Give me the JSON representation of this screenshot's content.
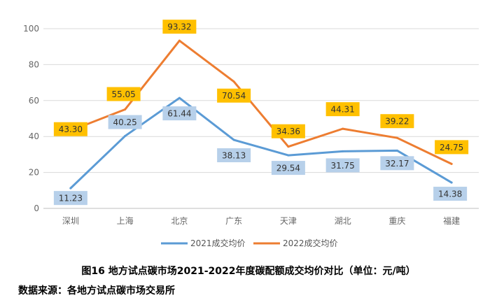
{
  "chart_data": {
    "type": "line",
    "categories": [
      "深圳",
      "上海",
      "北京",
      "广东",
      "天津",
      "湖北",
      "重庆",
      "福建"
    ],
    "series": [
      {
        "name": "2021成交均价",
        "values": [
          11.23,
          40.25,
          61.44,
          38.13,
          29.54,
          31.75,
          32.17,
          14.38
        ],
        "color": "#5b9bd5",
        "label_bg": "#b7d0ea"
      },
      {
        "name": "2022成交均价",
        "values": [
          43.3,
          55.05,
          93.32,
          70.54,
          34.36,
          44.31,
          39.22,
          24.75
        ],
        "color": "#ed7d31",
        "label_bg": "#ffc000"
      }
    ],
    "data_labels": [
      [
        "11.23",
        "40.25",
        "61.44",
        "38.13",
        "29.54",
        "31.75",
        "32.17",
        "14.38"
      ],
      [
        "43.30",
        "55.05",
        "93.32",
        "70.54",
        "34.36",
        "44.31",
        "39.22",
        "24.75"
      ]
    ],
    "ylim": [
      0,
      100
    ],
    "yticks": [
      "0",
      "20",
      "40",
      "60",
      "80",
      "100"
    ],
    "grid": true,
    "legend": "bottom",
    "title": ""
  },
  "caption": "图16 地方试点碳市场2021-2022年度碳配额成交均价对比（单位：元/吨）",
  "source": "数据来源：各地方试点碳市场交易所"
}
